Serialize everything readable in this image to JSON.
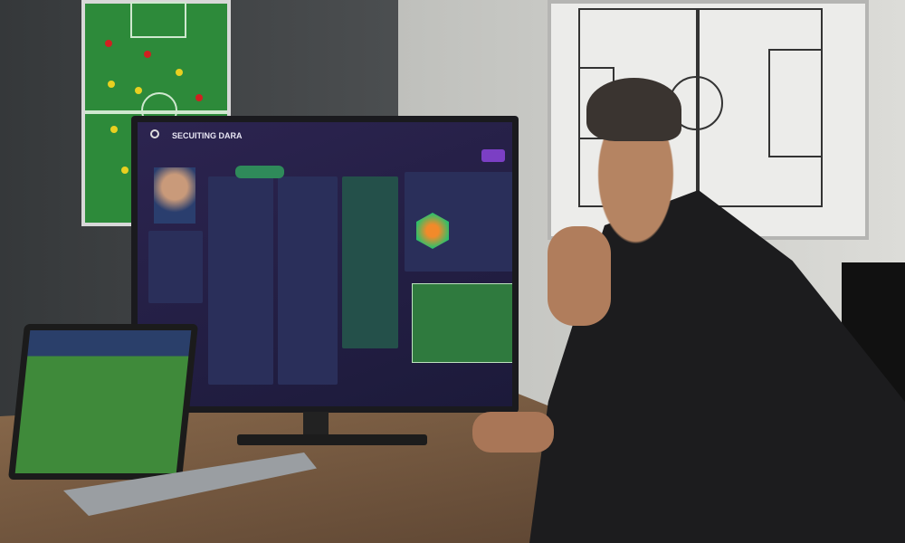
{
  "scene": {
    "monitor_app": {
      "title": "SECUITING DARA",
      "accent": "#7b3fc4",
      "background": "#2c2450"
    }
  }
}
